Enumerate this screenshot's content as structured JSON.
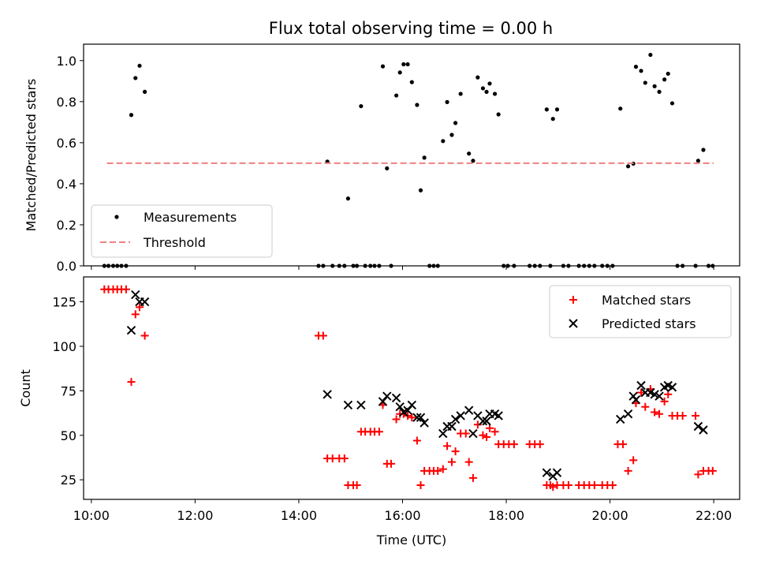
{
  "title": "Flux total observing time = 0.00 h",
  "chart_data": [
    {
      "type": "scatter",
      "ylabel": "Matched/Predicted stars",
      "xlim": [
        9.85,
        22.5
      ],
      "ylim": [
        0,
        1.08
      ],
      "yticks": [
        0.0,
        0.2,
        0.4,
        0.6,
        0.8,
        1.0
      ],
      "ytick_labels": [
        "0.0",
        "0.2",
        "0.4",
        "0.6",
        "0.8",
        "1.0"
      ],
      "legend_position": "lower-left",
      "series": [
        {
          "name": "Measurements",
          "marker": "dot",
          "color": "#000000",
          "points": [
            [
              10.25,
              0
            ],
            [
              10.33,
              0
            ],
            [
              10.42,
              0
            ],
            [
              10.5,
              0
            ],
            [
              10.58,
              0
            ],
            [
              10.67,
              0
            ],
            [
              10.77,
              0.735
            ],
            [
              10.85,
              0.915
            ],
            [
              10.93,
              0.975
            ],
            [
              11.03,
              0.848
            ],
            [
              14.38,
              0
            ],
            [
              14.47,
              0
            ],
            [
              14.55,
              0.508
            ],
            [
              14.65,
              0
            ],
            [
              14.78,
              0
            ],
            [
              14.88,
              0
            ],
            [
              14.95,
              0.328
            ],
            [
              15.05,
              0
            ],
            [
              15.12,
              0
            ],
            [
              15.2,
              0.778
            ],
            [
              15.28,
              0
            ],
            [
              15.38,
              0
            ],
            [
              15.46,
              0
            ],
            [
              15.55,
              0
            ],
            [
              15.62,
              0.972
            ],
            [
              15.7,
              0.475
            ],
            [
              15.78,
              0
            ],
            [
              15.88,
              0.83
            ],
            [
              15.95,
              0.942
            ],
            [
              16.02,
              0.982
            ],
            [
              16.1,
              0.982
            ],
            [
              16.18,
              0.895
            ],
            [
              16.28,
              0.784
            ],
            [
              16.35,
              0.368
            ],
            [
              16.42,
              0.527
            ],
            [
              16.52,
              0
            ],
            [
              16.6,
              0
            ],
            [
              16.68,
              0
            ],
            [
              16.78,
              0.608
            ],
            [
              16.86,
              0.798
            ],
            [
              16.95,
              0.638
            ],
            [
              17.02,
              0.696
            ],
            [
              17.12,
              0.838
            ],
            [
              17.28,
              0.547
            ],
            [
              17.36,
              0.512
            ],
            [
              17.45,
              0.918
            ],
            [
              17.55,
              0.865
            ],
            [
              17.62,
              0.848
            ],
            [
              17.68,
              0.888
            ],
            [
              17.78,
              0.838
            ],
            [
              17.85,
              0.738
            ],
            [
              17.95,
              0
            ],
            [
              18.03,
              0
            ],
            [
              18.15,
              0
            ],
            [
              18.45,
              0
            ],
            [
              18.55,
              0
            ],
            [
              18.65,
              0
            ],
            [
              18.78,
              0.762
            ],
            [
              18.9,
              0.716
            ],
            [
              18.98,
              0.762
            ],
            [
              18.85,
              0
            ],
            [
              19.1,
              0
            ],
            [
              19.2,
              0
            ],
            [
              19.4,
              0
            ],
            [
              19.5,
              0
            ],
            [
              19.6,
              0
            ],
            [
              19.7,
              0
            ],
            [
              19.85,
              0
            ],
            [
              19.95,
              0
            ],
            [
              20.2,
              0.766
            ],
            [
              20.05,
              0
            ],
            [
              20.35,
              0.485
            ],
            [
              20.45,
              0.498
            ],
            [
              20.5,
              0.97
            ],
            [
              20.6,
              0.95
            ],
            [
              20.68,
              0.892
            ],
            [
              20.78,
              1.028
            ],
            [
              20.86,
              0.875
            ],
            [
              20.95,
              0.848
            ],
            [
              21.05,
              0.908
            ],
            [
              21.12,
              0.936
            ],
            [
              21.2,
              0.792
            ],
            [
              21.3,
              0
            ],
            [
              21.4,
              0
            ],
            [
              21.65,
              0
            ],
            [
              21.7,
              0.512
            ],
            [
              21.8,
              0.565
            ],
            [
              21.9,
              0
            ],
            [
              21.98,
              0
            ]
          ]
        },
        {
          "name": "Threshold",
          "marker": "dashed-line",
          "color": "#f08080",
          "x": [
            10.3,
            22.0
          ],
          "y": [
            0.5,
            0.5
          ]
        }
      ]
    },
    {
      "type": "scatter",
      "xlabel": "Time (UTC)",
      "ylabel": "Count",
      "xlim": [
        9.85,
        22.5
      ],
      "ylim": [
        14,
        139
      ],
      "xticks": [
        10,
        12,
        14,
        16,
        18,
        20,
        22
      ],
      "xtick_labels": [
        "10:00",
        "12:00",
        "14:00",
        "16:00",
        "18:00",
        "20:00",
        "22:00"
      ],
      "yticks": [
        25,
        50,
        75,
        100,
        125
      ],
      "ytick_labels": [
        "25",
        "50",
        "75",
        "100",
        "125"
      ],
      "legend_position": "upper-right",
      "series": [
        {
          "name": "Matched stars",
          "marker": "plus",
          "color": "#ff0000",
          "points": [
            [
              10.25,
              132
            ],
            [
              10.33,
              132
            ],
            [
              10.42,
              132
            ],
            [
              10.5,
              132
            ],
            [
              10.58,
              132
            ],
            [
              10.67,
              132
            ],
            [
              10.77,
              80
            ],
            [
              10.85,
              118
            ],
            [
              10.93,
              122
            ],
            [
              11.03,
              106
            ],
            [
              14.38,
              106
            ],
            [
              14.47,
              106
            ],
            [
              14.55,
              37
            ],
            [
              14.65,
              37
            ],
            [
              14.78,
              37
            ],
            [
              14.88,
              37
            ],
            [
              14.95,
              22
            ],
            [
              15.05,
              22
            ],
            [
              15.12,
              22
            ],
            [
              15.2,
              52
            ],
            [
              15.28,
              52
            ],
            [
              15.38,
              52
            ],
            [
              15.46,
              52
            ],
            [
              15.55,
              52
            ],
            [
              15.62,
              67
            ],
            [
              15.7,
              34
            ],
            [
              15.78,
              34
            ],
            [
              15.88,
              59
            ],
            [
              15.95,
              62
            ],
            [
              16.02,
              62
            ],
            [
              16.1,
              61
            ],
            [
              16.18,
              60
            ],
            [
              16.28,
              47
            ],
            [
              16.35,
              22
            ],
            [
              16.42,
              30
            ],
            [
              16.52,
              30
            ],
            [
              16.6,
              30
            ],
            [
              16.68,
              30
            ],
            [
              16.78,
              31
            ],
            [
              16.86,
              44
            ],
            [
              16.95,
              35
            ],
            [
              17.02,
              41
            ],
            [
              17.12,
              51
            ],
            [
              17.22,
              51
            ],
            [
              17.28,
              35
            ],
            [
              17.36,
              26
            ],
            [
              17.45,
              56
            ],
            [
              17.55,
              50
            ],
            [
              17.62,
              49
            ],
            [
              17.68,
              54
            ],
            [
              17.78,
              52
            ],
            [
              17.85,
              45
            ],
            [
              17.95,
              45
            ],
            [
              18.05,
              45
            ],
            [
              18.15,
              45
            ],
            [
              18.45,
              45
            ],
            [
              18.55,
              45
            ],
            [
              18.65,
              45
            ],
            [
              18.78,
              22
            ],
            [
              18.85,
              22
            ],
            [
              18.9,
              21
            ],
            [
              18.98,
              22
            ],
            [
              19.1,
              22
            ],
            [
              19.2,
              22
            ],
            [
              19.4,
              22
            ],
            [
              19.5,
              22
            ],
            [
              19.6,
              22
            ],
            [
              19.7,
              22
            ],
            [
              19.85,
              22
            ],
            [
              19.95,
              22
            ],
            [
              20.05,
              22
            ],
            [
              20.15,
              45
            ],
            [
              20.25,
              45
            ],
            [
              20.35,
              30
            ],
            [
              20.45,
              36
            ],
            [
              20.5,
              68
            ],
            [
              20.6,
              74
            ],
            [
              20.68,
              66
            ],
            [
              20.78,
              76
            ],
            [
              20.86,
              63
            ],
            [
              20.95,
              62
            ],
            [
              21.05,
              69
            ],
            [
              21.12,
              73
            ],
            [
              21.2,
              61
            ],
            [
              21.3,
              61
            ],
            [
              21.4,
              61
            ],
            [
              21.65,
              61
            ],
            [
              21.7,
              28
            ],
            [
              21.8,
              30
            ],
            [
              21.9,
              30
            ],
            [
              21.98,
              30
            ]
          ]
        },
        {
          "name": "Predicted stars",
          "marker": "x",
          "color": "#000000",
          "points": [
            [
              10.77,
              109
            ],
            [
              10.85,
              129
            ],
            [
              10.93,
              125
            ],
            [
              11.03,
              125
            ],
            [
              14.55,
              73
            ],
            [
              14.95,
              67
            ],
            [
              15.2,
              67
            ],
            [
              15.62,
              69
            ],
            [
              15.7,
              72
            ],
            [
              15.88,
              71
            ],
            [
              15.95,
              66
            ],
            [
              16.02,
              63
            ],
            [
              16.1,
              64
            ],
            [
              16.18,
              67
            ],
            [
              16.28,
              60
            ],
            [
              16.35,
              60
            ],
            [
              16.42,
              57
            ],
            [
              16.78,
              51
            ],
            [
              16.86,
              55
            ],
            [
              16.95,
              55
            ],
            [
              17.02,
              59
            ],
            [
              17.12,
              61
            ],
            [
              17.28,
              64
            ],
            [
              17.36,
              51
            ],
            [
              17.45,
              61
            ],
            [
              17.55,
              58
            ],
            [
              17.62,
              58
            ],
            [
              17.68,
              62
            ],
            [
              17.78,
              62
            ],
            [
              17.85,
              61
            ],
            [
              18.78,
              29
            ],
            [
              18.9,
              27
            ],
            [
              18.98,
              29
            ],
            [
              20.2,
              59
            ],
            [
              20.35,
              62
            ],
            [
              20.45,
              72
            ],
            [
              20.5,
              70
            ],
            [
              20.6,
              78
            ],
            [
              20.68,
              74
            ],
            [
              20.78,
              74
            ],
            [
              20.86,
              73
            ],
            [
              20.95,
              72
            ],
            [
              21.05,
              77
            ],
            [
              21.12,
              78
            ],
            [
              21.2,
              77
            ],
            [
              21.7,
              55
            ],
            [
              21.8,
              53
            ]
          ]
        }
      ]
    }
  ]
}
